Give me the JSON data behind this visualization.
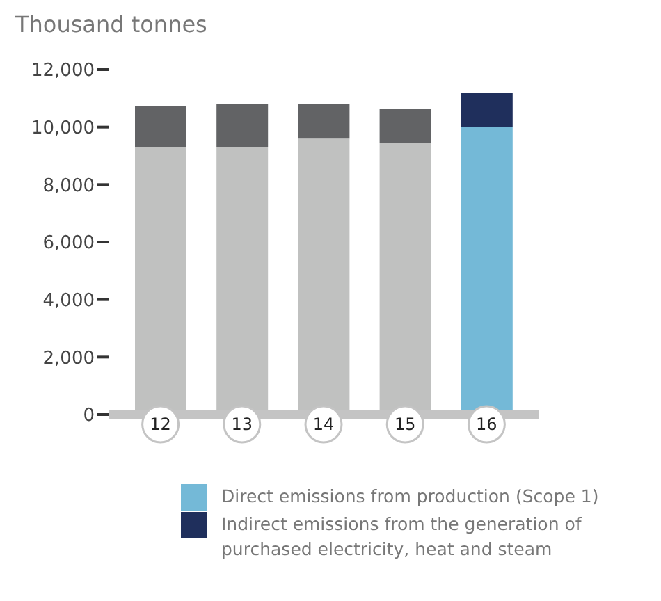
{
  "chart_data": {
    "type": "bar",
    "stacked": true,
    "ylabel": "Thousand tonnes",
    "categories": [
      "12",
      "13",
      "14",
      "15",
      "16"
    ],
    "series": [
      {
        "name": "Direct emissions from production (Scope 1)",
        "color": "#74b9d7",
        "colors": [
          "#c0c1c0",
          "#c0c1c0",
          "#c0c1c0",
          "#c0c1c0",
          "#74b9d7"
        ],
        "values": [
          9300,
          9300,
          9600,
          9450,
          10000
        ]
      },
      {
        "name": "Indirect emissions from the generation of purchased electricity, heat and steam",
        "color": "#1f2f5c",
        "colors": [
          "#626365",
          "#626365",
          "#626365",
          "#626365",
          "#1f2f5c"
        ],
        "values": [
          1420,
          1500,
          1200,
          1180,
          1190
        ]
      }
    ],
    "ylim": [
      0,
      12000
    ],
    "yticks": [
      0,
      {
        "value": 2000,
        "label": "2,000"
      },
      {
        "value": 4000,
        "label": "4,000"
      },
      {
        "value": 6000,
        "label": "6,000"
      },
      {
        "value": 8000,
        "label": "8,000"
      },
      {
        "value": 10000,
        "label": "10,000"
      },
      {
        "value": 12000,
        "label": "12,000"
      }
    ],
    "grid": false,
    "legend": "bottom"
  }
}
